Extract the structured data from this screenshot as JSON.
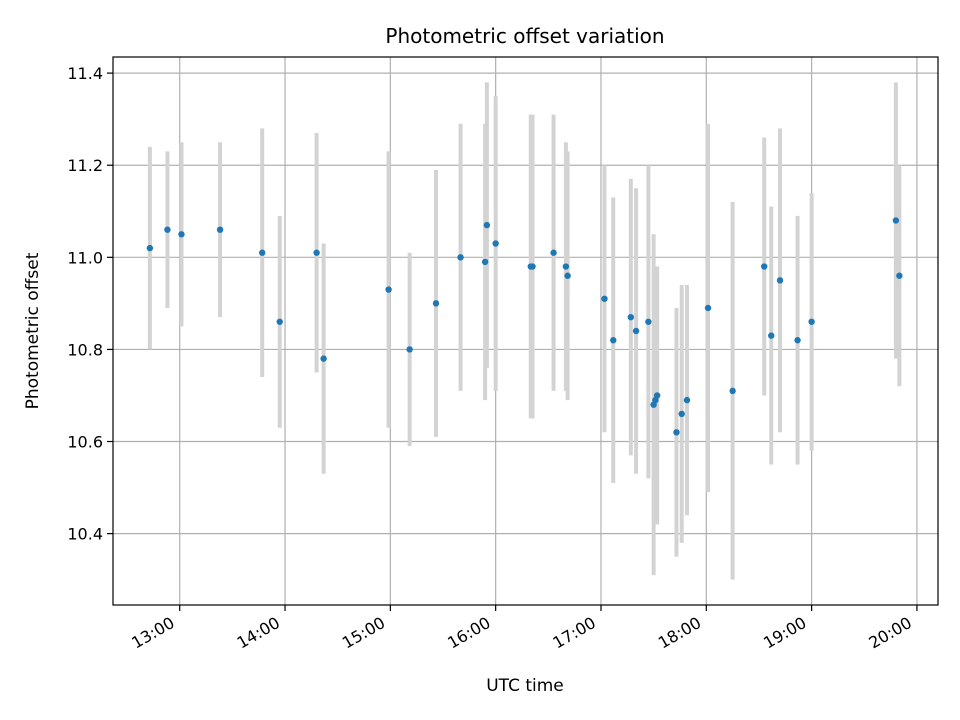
{
  "chart_data": {
    "type": "scatter",
    "title": "Photometric offset variation",
    "xlabel": "UTC time",
    "ylabel": "Photometric offset",
    "xlim": [
      "12:22",
      "20:12"
    ],
    "ylim": [
      10.245,
      11.435
    ],
    "grid": true,
    "x_ticks": [
      "13:00",
      "14:00",
      "15:00",
      "16:00",
      "17:00",
      "18:00",
      "19:00",
      "20:00"
    ],
    "y_ticks": [
      "10.4",
      "10.6",
      "10.8",
      "11.0",
      "11.2",
      "11.4"
    ],
    "colors": {
      "point": "#1f77b4",
      "errorbar": "#d3d3d3",
      "grid": "#b0b0b0"
    },
    "points": [
      {
        "x": "12:43",
        "y": 11.02,
        "err": 0.22
      },
      {
        "x": "12:53",
        "y": 11.06,
        "err": 0.17
      },
      {
        "x": "13:01",
        "y": 11.05,
        "err": 0.2
      },
      {
        "x": "13:23",
        "y": 11.06,
        "err": 0.19
      },
      {
        "x": "13:47",
        "y": 11.01,
        "err": 0.27
      },
      {
        "x": "13:57",
        "y": 10.86,
        "err": 0.23
      },
      {
        "x": "14:18",
        "y": 11.01,
        "err": 0.26
      },
      {
        "x": "14:22",
        "y": 10.78,
        "err": 0.25
      },
      {
        "x": "14:59",
        "y": 10.93,
        "err": 0.3
      },
      {
        "x": "15:11",
        "y": 10.8,
        "err": 0.21
      },
      {
        "x": "15:26",
        "y": 10.9,
        "err": 0.29
      },
      {
        "x": "15:40",
        "y": 11.0,
        "err": 0.29
      },
      {
        "x": "15:54",
        "y": 10.99,
        "err": 0.3
      },
      {
        "x": "15:55",
        "y": 11.07,
        "err": 0.31
      },
      {
        "x": "16:00",
        "y": 11.03,
        "err": 0.32
      },
      {
        "x": "16:20",
        "y": 10.98,
        "err": 0.33
      },
      {
        "x": "16:21",
        "y": 10.98,
        "err": 0.33
      },
      {
        "x": "16:33",
        "y": 11.01,
        "err": 0.3
      },
      {
        "x": "16:40",
        "y": 10.98,
        "err": 0.27
      },
      {
        "x": "16:41",
        "y": 10.96,
        "err": 0.27
      },
      {
        "x": "17:02",
        "y": 10.91,
        "err": 0.29
      },
      {
        "x": "17:07",
        "y": 10.82,
        "err": 0.31
      },
      {
        "x": "17:17",
        "y": 10.87,
        "err": 0.3
      },
      {
        "x": "17:20",
        "y": 10.84,
        "err": 0.31
      },
      {
        "x": "17:27",
        "y": 10.86,
        "err": 0.34
      },
      {
        "x": "17:30",
        "y": 10.68,
        "err": 0.37
      },
      {
        "x": "17:31",
        "y": 10.69,
        "err": 0.27
      },
      {
        "x": "17:32",
        "y": 10.7,
        "err": 0.28
      },
      {
        "x": "17:43",
        "y": 10.62,
        "err": 0.27
      },
      {
        "x": "17:46",
        "y": 10.66,
        "err": 0.28
      },
      {
        "x": "17:49",
        "y": 10.69,
        "err": 0.25
      },
      {
        "x": "18:01",
        "y": 10.89,
        "err": 0.4
      },
      {
        "x": "18:15",
        "y": 10.71,
        "err": 0.41
      },
      {
        "x": "18:33",
        "y": 10.98,
        "err": 0.28
      },
      {
        "x": "18:37",
        "y": 10.83,
        "err": 0.28
      },
      {
        "x": "18:42",
        "y": 10.95,
        "err": 0.33
      },
      {
        "x": "18:52",
        "y": 10.82,
        "err": 0.27
      },
      {
        "x": "19:00",
        "y": 10.86,
        "err": 0.28
      },
      {
        "x": "19:48",
        "y": 11.08,
        "err": 0.3
      },
      {
        "x": "19:50",
        "y": 10.96,
        "err": 0.24
      }
    ]
  }
}
